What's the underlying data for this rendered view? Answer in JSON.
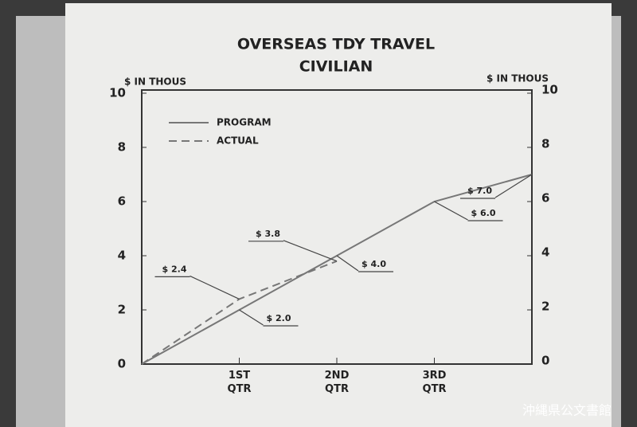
{
  "chart_data": {
    "type": "line",
    "title": "OVERSEAS TDY TRAVEL",
    "subtitle": "CIVILIAN",
    "ylabel": "$ IN THOUS",
    "y2label": "$ IN THOUS",
    "categories": [
      null,
      "1ST QTR",
      "2ND QTR",
      "3RD QTR",
      null
    ],
    "series": [
      {
        "name": "PROGRAM",
        "color": "#777777",
        "style": "solid",
        "values": [
          0,
          2.0,
          4.0,
          6.0,
          7.0
        ],
        "value_labels": [
          null,
          "$ 2.0",
          "$ 4.0",
          "$ 6.0",
          "$ 7.0"
        ]
      },
      {
        "name": "ACTUAL",
        "color": "#777777",
        "style": "dashed",
        "values": [
          0,
          2.4,
          3.8,
          null,
          null
        ],
        "value_labels": [
          null,
          "$ 2.4",
          "$ 3.8",
          null,
          null
        ]
      }
    ],
    "ylim": [
      0,
      10
    ],
    "yticks": [
      0,
      2,
      4,
      6,
      8,
      10
    ],
    "y2lim": [
      0,
      10
    ],
    "y2ticks": [
      0,
      2,
      4,
      6,
      8,
      10
    ],
    "legend": "upper left",
    "watermark": "沖縄県公文書館"
  }
}
